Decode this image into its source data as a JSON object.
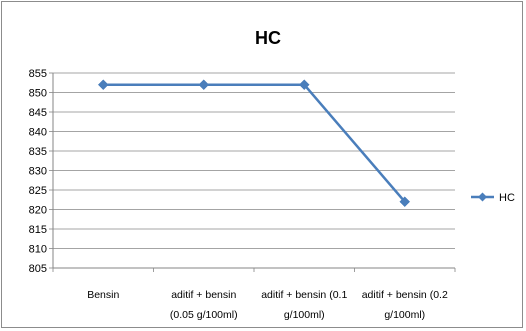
{
  "chart_data": {
    "type": "line",
    "title": "HC",
    "xlabel": "",
    "ylabel": "",
    "categories": [
      [
        "Bensin"
      ],
      [
        "aditif + bensin",
        "(0.05 g/100ml)"
      ],
      [
        "aditif + bensin (0.1",
        "g/100ml)"
      ],
      [
        "aditif + bensin (0.2",
        "g/100ml)"
      ]
    ],
    "series": [
      {
        "name": "HC",
        "values": [
          852,
          852,
          852,
          822
        ],
        "color": "#4a7ebb",
        "marker": "diamond"
      }
    ],
    "ylim": [
      805,
      855
    ],
    "ytick_step": 5,
    "grid": "horizontal",
    "legend_position": "right"
  }
}
